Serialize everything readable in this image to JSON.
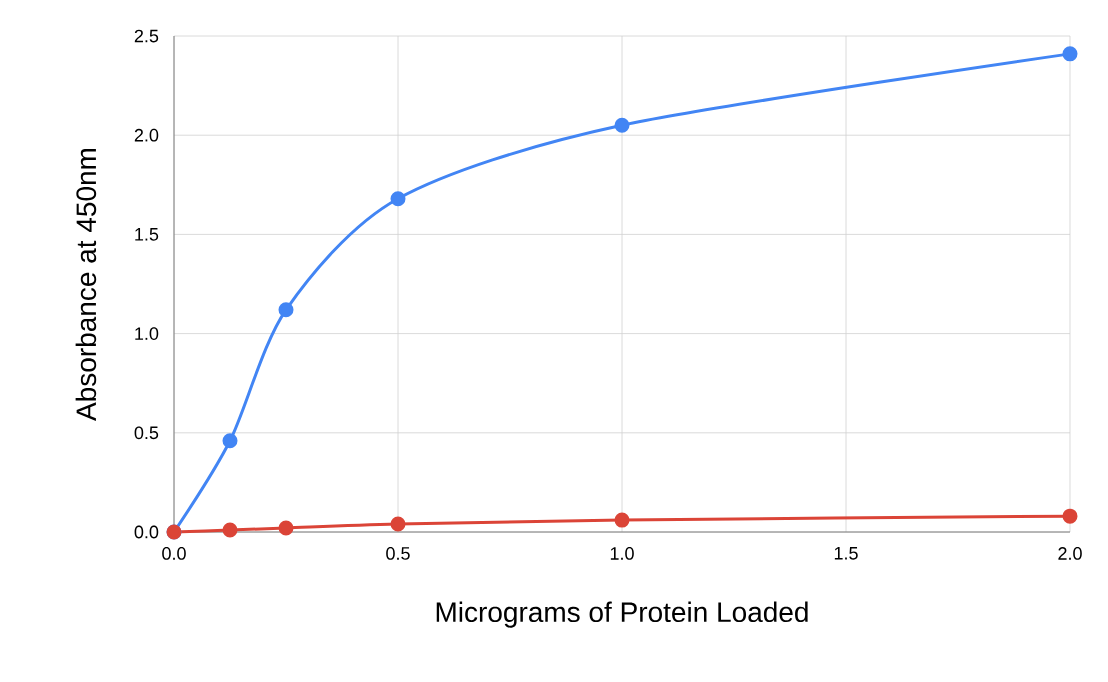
{
  "chart_data": {
    "type": "line",
    "xlabel": "Micrograms of Protein Loaded",
    "ylabel": "Absorbance at 450nm",
    "x": [
      0,
      0.125,
      0.25,
      0.5,
      1.0,
      2.0
    ],
    "series": [
      {
        "color": "#4285f4",
        "values": [
          0,
          0.46,
          1.12,
          1.68,
          2.05,
          2.41
        ]
      },
      {
        "color": "#db4437",
        "values": [
          0,
          0.01,
          0.02,
          0.04,
          0.06,
          0.08
        ]
      }
    ],
    "xlim": [
      0,
      2.0
    ],
    "ylim": [
      0,
      2.5
    ],
    "xticks": [
      {
        "value": 0,
        "label": "0.0"
      },
      {
        "value": 0.5,
        "label": "0.5"
      },
      {
        "value": 1.0,
        "label": "1.0"
      },
      {
        "value": 1.5,
        "label": "1.5"
      },
      {
        "value": 2.0,
        "label": "2.0"
      }
    ],
    "yticks": [
      {
        "value": 0,
        "label": "0.0"
      },
      {
        "value": 0.5,
        "label": "0.5"
      },
      {
        "value": 1.0,
        "label": "1.0"
      },
      {
        "value": 1.5,
        "label": "1.5"
      },
      {
        "value": 2.0,
        "label": "2.0"
      },
      {
        "value": 2.5,
        "label": "2.5"
      }
    ],
    "grid": true,
    "marker": "circle",
    "line_style": "solid"
  }
}
